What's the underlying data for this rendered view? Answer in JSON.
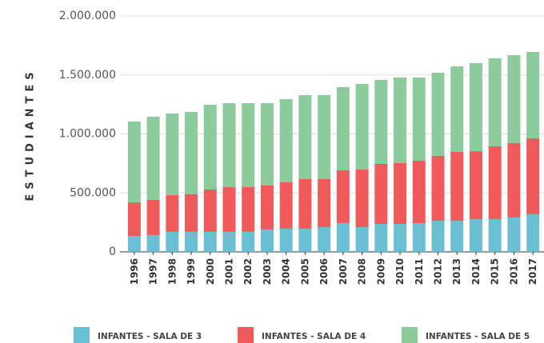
{
  "chart_data": {
    "type": "stacked_bar",
    "y_label": "ESTUDIANTES",
    "categories": [
      "1996",
      "1997",
      "1998",
      "1999",
      "2000",
      "2001",
      "2002",
      "2003",
      "2004",
      "2005",
      "2006",
      "2007",
      "2008",
      "2009",
      "2010",
      "2011",
      "2012",
      "2013",
      "2014",
      "2015",
      "2016",
      "2017"
    ],
    "series": [
      {
        "name": "INFANTES - SALA DE 3",
        "color": "#6bbfd3",
        "values": [
          136000,
          142000,
          170000,
          170000,
          170000,
          170000,
          170000,
          190000,
          197000,
          197000,
          210000,
          244000,
          210000,
          237000,
          237000,
          244000,
          264000,
          264000,
          278000,
          278000,
          292000,
          319000
        ]
      },
      {
        "name": "INFANTES - SALA DE 4",
        "color": "#f05a5a",
        "values": [
          284000,
          299000,
          311000,
          318000,
          359000,
          379000,
          379000,
          373000,
          393000,
          420000,
          407000,
          448000,
          488000,
          509000,
          516000,
          529000,
          550000,
          584000,
          576000,
          617000,
          630000,
          644000
        ]
      },
      {
        "name": "INFANTES - SALA DE 5",
        "color": "#8ccc9c",
        "values": [
          685000,
          705000,
          692000,
          698000,
          718000,
          712000,
          712000,
          698000,
          705000,
          712000,
          712000,
          705000,
          726000,
          712000,
          725000,
          705000,
          705000,
          725000,
          746000,
          746000,
          746000,
          732000
        ]
      }
    ],
    "ylim": [
      0,
      2000000
    ],
    "yticks": [
      0,
      {
        "value": 500000,
        "label": "500.000"
      },
      {
        "value": 1000000,
        "label": "1.000.000"
      },
      {
        "value": 1500000,
        "label": "1.500.000"
      },
      {
        "value": 2000000,
        "label": "2.000.000"
      }
    ],
    "grid": true,
    "legend": "bottom"
  }
}
